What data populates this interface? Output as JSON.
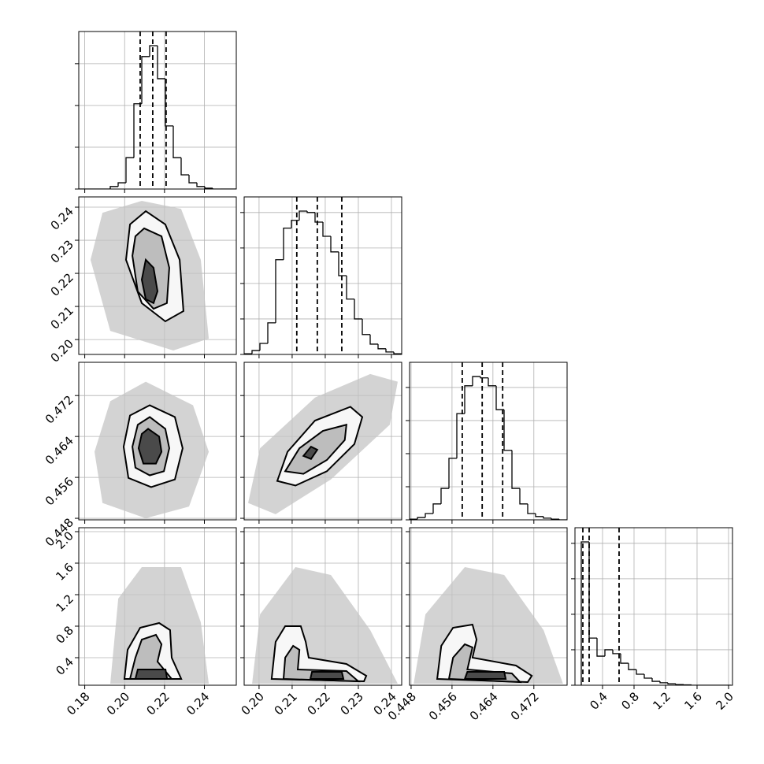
{
  "chart_data": [
    {
      "type": "histogram",
      "xlim": [
        0.177,
        0.256
      ],
      "xticks": [
        0.18,
        {
          "value": 0.2,
          "label": "0.20"
        },
        0.22,
        0.24
      ],
      "ylim": [
        0,
        3.77
      ],
      "yticks": [
        0,
        1,
        2,
        3
      ],
      "grid": true,
      "color": "#000000",
      "bins": [
        0.177,
        0.18095,
        0.1849,
        0.18885,
        0.1928,
        0.19675,
        0.2007,
        0.20465,
        0.2086,
        0.21255,
        0.2165,
        0.22045,
        0.2244,
        0.22835,
        0.2323,
        0.23625,
        0.2402,
        0.24415,
        0.2481,
        0.25205,
        0.256
      ],
      "counts": [
        0,
        0,
        0,
        0,
        0.06,
        0.15,
        0.75,
        2.04,
        3.17,
        3.43,
        2.64,
        1.51,
        0.75,
        0.34,
        0.15,
        0.06,
        0.02,
        0,
        0,
        0
      ],
      "quantiles": [
        0.2078,
        0.2141,
        0.2208
      ]
    },
    {
      "type": "contour",
      "xlim": [
        0.177,
        0.256
      ],
      "xticks": [
        0.18,
        {
          "value": 0.2,
          "label": "0.20"
        },
        0.22,
        0.24
      ],
      "ylim": [
        0.1955,
        0.2431
      ],
      "yticks": [
        {
          "value": 0.2,
          "label": "0.20"
        },
        0.21,
        0.22,
        0.23,
        0.24
      ],
      "grid": true,
      "ytick_labels": true,
      "contour_color": "#000000",
      "cloud": {
        "x": [
          0.2086,
          0.2283,
          0.2382,
          0.2422,
          0.2244,
          0.1928,
          0.1829,
          0.1889
        ],
        "y": [
          0.2419,
          0.2395,
          0.2241,
          0.2003,
          0.1967,
          0.2026,
          0.2241,
          0.2383
        ],
        "fill": "#c4c4c4"
      },
      "regions": [
        {
          "x": [
            0.2106,
            0.2204,
            0.2276,
            0.2295,
            0.2204,
            0.2086,
            0.2007,
            0.2027
          ],
          "y": [
            0.2388,
            0.2348,
            0.2241,
            0.2086,
            0.2055,
            0.211,
            0.2241,
            0.2348
          ],
          "fill": "#f7f7f7"
        },
        {
          "x": [
            0.2098,
            0.2185,
            0.2224,
            0.2212,
            0.2145,
            0.2066,
            0.2039,
            0.2054
          ],
          "y": [
            0.2336,
            0.2312,
            0.2217,
            0.211,
            0.2093,
            0.2145,
            0.2253,
            0.2312
          ],
          "fill": "#bdbdbd"
        },
        {
          "x": [
            0.2106,
            0.2145,
            0.2165,
            0.2145,
            0.2106,
            0.2086
          ],
          "y": [
            0.2241,
            0.2217,
            0.2146,
            0.211,
            0.2122,
            0.2181
          ],
          "fill": "#4a4a4a"
        }
      ]
    },
    {
      "type": "histogram",
      "xlim": [
        0.1955,
        0.2431
      ],
      "xticks": [
        {
          "value": 0.2,
          "label": "0.20"
        },
        0.21,
        0.22,
        0.23,
        0.24
      ],
      "ylim": [
        0,
        4.44
      ],
      "yticks": [
        0,
        1,
        2,
        3,
        4
      ],
      "grid": true,
      "color": "#000000",
      "bins": [
        0.1955,
        0.19788,
        0.20026,
        0.20264,
        0.20502,
        0.2074,
        0.20978,
        0.21216,
        0.21454,
        0.21692,
        0.2193,
        0.22168,
        0.22406,
        0.22644,
        0.22882,
        0.2312,
        0.23358,
        0.23596,
        0.23834,
        0.24072,
        0.2431
      ],
      "counts": [
        0.02,
        0.11,
        0.31,
        0.89,
        2.67,
        3.56,
        3.78,
        4.04,
        4.0,
        3.73,
        3.33,
        2.89,
        2.22,
        1.56,
        1.0,
        0.56,
        0.29,
        0.16,
        0.07,
        0.02
      ],
      "quantiles": [
        0.2114,
        0.2176,
        0.225
      ]
    },
    {
      "type": "contour",
      "xlim": [
        0.177,
        0.256
      ],
      "xticks": [
        0.18,
        {
          "value": 0.2,
          "label": "0.20"
        },
        0.22,
        0.24
      ],
      "ylim": [
        0.4477,
        0.4785
      ],
      "yticks": [
        0.448,
        0.456,
        0.464,
        0.472
      ],
      "grid": true,
      "ytick_labels": true,
      "contour_color": "#000000",
      "cloud": {
        "x": [
          0.2106,
          0.2343,
          0.2422,
          0.2323,
          0.2106,
          0.1889,
          0.1849,
          0.1928
        ],
        "y": [
          0.4747,
          0.4701,
          0.461,
          0.4503,
          0.448,
          0.451,
          0.461,
          0.4709
        ],
        "fill": "#c4c4c4"
      },
      "regions": [
        {
          "x": [
            0.2126,
            0.2252,
            0.2291,
            0.2252,
            0.2133,
            0.2019,
            0.1995,
            0.2027
          ],
          "y": [
            0.4701,
            0.4678,
            0.4617,
            0.4556,
            0.4541,
            0.4559,
            0.462,
            0.4681
          ],
          "fill": "#f7f7f7"
        },
        {
          "x": [
            0.2126,
            0.2204,
            0.2224,
            0.2197,
            0.2126,
            0.2054,
            0.2039,
            0.2066
          ],
          "y": [
            0.4678,
            0.4655,
            0.4617,
            0.4572,
            0.4564,
            0.4579,
            0.462,
            0.4663
          ],
          "fill": "#bdbdbd"
        },
        {
          "x": [
            0.2118,
            0.2173,
            0.2185,
            0.2157,
            0.2094,
            0.207,
            0.2086
          ],
          "y": [
            0.4655,
            0.464,
            0.461,
            0.4587,
            0.4587,
            0.4617,
            0.4645
          ],
          "fill": "#4a4a4a"
        }
      ]
    },
    {
      "type": "contour",
      "xlim": [
        0.1955,
        0.2431
      ],
      "xticks": [
        {
          "value": 0.2,
          "label": "0.20"
        },
        0.21,
        0.22,
        0.23,
        0.24
      ],
      "ylim": [
        0.4477,
        0.4785
      ],
      "yticks": [
        0.448,
        0.456,
        0.464,
        0.472
      ],
      "grid": true,
      "contour_color": "#000000",
      "cloud": {
        "x": [
          0.1967,
          0.2003,
          0.2169,
          0.2336,
          0.2419,
          0.2395,
          0.2217,
          0.205
        ],
        "y": [
          0.451,
          0.4617,
          0.4716,
          0.4762,
          0.4747,
          0.4663,
          0.4556,
          0.4488
        ],
        "fill": "#c4c4c4"
      },
      "regions": [
        {
          "x": [
            0.2055,
            0.2086,
            0.2169,
            0.2276,
            0.2312,
            0.2288,
            0.2205,
            0.211
          ],
          "y": [
            0.4553,
            0.461,
            0.4671,
            0.4698,
            0.4678,
            0.4625,
            0.4572,
            0.4544
          ],
          "fill": "#f7f7f7"
        },
        {
          "x": [
            0.2079,
            0.2122,
            0.2193,
            0.2264,
            0.2259,
            0.2205,
            0.2134
          ],
          "y": [
            0.4572,
            0.4617,
            0.4651,
            0.4663,
            0.4633,
            0.4594,
            0.4567
          ],
          "fill": "#bdbdbd"
        },
        {
          "x": [
            0.2134,
            0.2157,
            0.2176,
            0.2157
          ],
          "y": [
            0.4602,
            0.462,
            0.4614,
            0.4596
          ],
          "fill": "#4a4a4a"
        }
      ]
    },
    {
      "type": "histogram",
      "xlim": [
        0.4477,
        0.4785
      ],
      "xticks": [
        0.448,
        0.456,
        0.464,
        0.472
      ],
      "ylim": [
        0,
        4.76
      ],
      "yticks": [
        0,
        1,
        2,
        3,
        4
      ],
      "grid": true,
      "color": "#000000",
      "bins": [
        0.4477,
        0.44924,
        0.45078,
        0.45232,
        0.45386,
        0.4554,
        0.45694,
        0.45848,
        0.46002,
        0.46156,
        0.4631,
        0.46464,
        0.46618,
        0.46772,
        0.46926,
        0.4708,
        0.47234,
        0.47388,
        0.47542,
        0.47696,
        0.4785
      ],
      "counts": [
        0.02,
        0.07,
        0.19,
        0.48,
        0.95,
        1.86,
        3.21,
        4.05,
        4.33,
        4.29,
        4.05,
        3.33,
        2.1,
        0.95,
        0.48,
        0.19,
        0.1,
        0.05,
        0.02,
        0
      ],
      "quantiles": [
        0.458,
        0.4619,
        0.4659
      ]
    },
    {
      "type": "contour",
      "xlim": [
        0.177,
        0.256
      ],
      "xticks": [
        0.18,
        {
          "value": 0.2,
          "label": "0.20"
        },
        0.22,
        0.24
      ],
      "ylim": [
        0.05,
        2.05
      ],
      "yticks": [
        0.4,
        0.8,
        1.2,
        1.6,
        {
          "value": 2,
          "label": "2.0"
        }
      ],
      "grid": true,
      "xtick_labels": true,
      "ytick_labels": true,
      "contour_color": "#000000",
      "cloud": {
        "x": [
          0.1928,
          0.1968,
          0.2086,
          0.2283,
          0.2382,
          0.2422
        ],
        "y": [
          0.07,
          1.15,
          1.55,
          1.55,
          0.85,
          0.07
        ],
        "fill": "#c4c4c4"
      },
      "regions": [
        {
          "x": [
            0.1999,
            0.2015,
            0.2078,
            0.2173,
            0.2228,
            0.2236,
            0.2284
          ],
          "y": [
            0.13,
            0.5,
            0.78,
            0.84,
            0.75,
            0.4,
            0.13
          ],
          "fill": "#f7f7f7"
        },
        {
          "x": [
            0.2027,
            0.2054,
            0.2086,
            0.2157,
            0.2185,
            0.2165,
            0.2236
          ],
          "y": [
            0.13,
            0.4,
            0.63,
            0.69,
            0.57,
            0.35,
            0.13
          ],
          "fill": "#bdbdbd"
        },
        {
          "x": [
            0.2054,
            0.2066,
            0.2205,
            0.2213
          ],
          "y": [
            0.13,
            0.25,
            0.25,
            0.13
          ],
          "fill": "#4a4a4a"
        }
      ]
    },
    {
      "type": "contour",
      "xlim": [
        0.1955,
        0.2431
      ],
      "xticks": [
        {
          "value": 0.2,
          "label": "0.20"
        },
        0.21,
        0.22,
        0.23,
        0.24
      ],
      "ylim": [
        0.05,
        2.05
      ],
      "yticks": [
        0.4,
        0.8,
        1.2,
        1.6,
        {
          "value": 2,
          "label": "2.0"
        }
      ],
      "grid": true,
      "xtick_labels": true,
      "contour_color": "#000000",
      "cloud": {
        "x": [
          0.1979,
          0.2003,
          0.211,
          0.2217,
          0.2336,
          0.2419
        ],
        "y": [
          0.07,
          0.95,
          1.55,
          1.45,
          0.75,
          0.07
        ],
        "fill": "#c4c4c4"
      },
      "regions": [
        {
          "x": [
            0.2038,
            0.205,
            0.2079,
            0.2126,
            0.2141,
            0.215,
            0.2264,
            0.2324,
            0.2317
          ],
          "y": [
            0.13,
            0.6,
            0.8,
            0.8,
            0.6,
            0.4,
            0.32,
            0.17,
            0.1
          ],
          "fill": "#f7f7f7"
        },
        {
          "x": [
            0.2074,
            0.2079,
            0.2103,
            0.2122,
            0.2117,
            0.2264,
            0.23
          ],
          "y": [
            0.13,
            0.4,
            0.55,
            0.5,
            0.25,
            0.23,
            0.1
          ],
          "fill": "#bdbdbd"
        },
        {
          "x": [
            0.2155,
            0.216,
            0.225,
            0.2255
          ],
          "y": [
            0.13,
            0.22,
            0.22,
            0.13
          ],
          "fill": "#4a4a4a"
        }
      ]
    },
    {
      "type": "contour",
      "xlim": [
        0.4477,
        0.4785
      ],
      "xticks": [
        0.448,
        0.456,
        0.464,
        0.472
      ],
      "ylim": [
        0.05,
        2.05
      ],
      "yticks": [
        0.4,
        0.8,
        1.2,
        1.6,
        {
          "value": 2,
          "label": "2.0"
        }
      ],
      "grid": true,
      "xtick_labels": true,
      "contour_color": "#000000",
      "cloud": {
        "x": [
          0.4485,
          0.4508,
          0.4585,
          0.4662,
          0.4739,
          0.4777
        ],
        "y": [
          0.07,
          0.95,
          1.55,
          1.45,
          0.75,
          0.07
        ],
        "fill": "#c4c4c4"
      },
      "regions": [
        {
          "x": [
            0.4531,
            0.4539,
            0.4562,
            0.46,
            0.4608,
            0.46,
            0.4685,
            0.4716,
            0.4708
          ],
          "y": [
            0.13,
            0.55,
            0.78,
            0.82,
            0.63,
            0.4,
            0.3,
            0.17,
            0.09
          ],
          "fill": "#f7f7f7"
        },
        {
          "x": [
            0.4554,
            0.4562,
            0.4585,
            0.46,
            0.459,
            0.4677,
            0.4693
          ],
          "y": [
            0.13,
            0.4,
            0.57,
            0.53,
            0.25,
            0.2,
            0.09
          ],
          "fill": "#bdbdbd"
        },
        {
          "x": [
            0.4585,
            0.459,
            0.4662,
            0.4665
          ],
          "y": [
            0.13,
            0.22,
            0.22,
            0.13
          ],
          "fill": "#4a4a4a"
        }
      ]
    },
    {
      "type": "histogram",
      "xlim": [
        0.05,
        2.05
      ],
      "xticks": [
        0.4,
        0.8,
        1.2,
        1.6,
        {
          "value": 2,
          "label": "2.0"
        }
      ],
      "ylim": [
        0,
        4.44
      ],
      "yticks": [
        0,
        1,
        2,
        3,
        4
      ],
      "grid": true,
      "xtick_labels": true,
      "color": "#000000",
      "bins": [
        0.13,
        0.23,
        0.33,
        0.43,
        0.53,
        0.63,
        0.73,
        0.83,
        0.93,
        1.03,
        1.13,
        1.23,
        1.33,
        1.43,
        1.53,
        1.63,
        1.73,
        1.83,
        1.93,
        2.03
      ],
      "counts": [
        4.04,
        1.33,
        0.82,
        1.0,
        0.89,
        0.62,
        0.44,
        0.31,
        0.2,
        0.11,
        0.07,
        0.04,
        0.02,
        0.01,
        0,
        0,
        0,
        0,
        0
      ],
      "quantiles": [
        0.15,
        0.23,
        0.61
      ]
    }
  ]
}
